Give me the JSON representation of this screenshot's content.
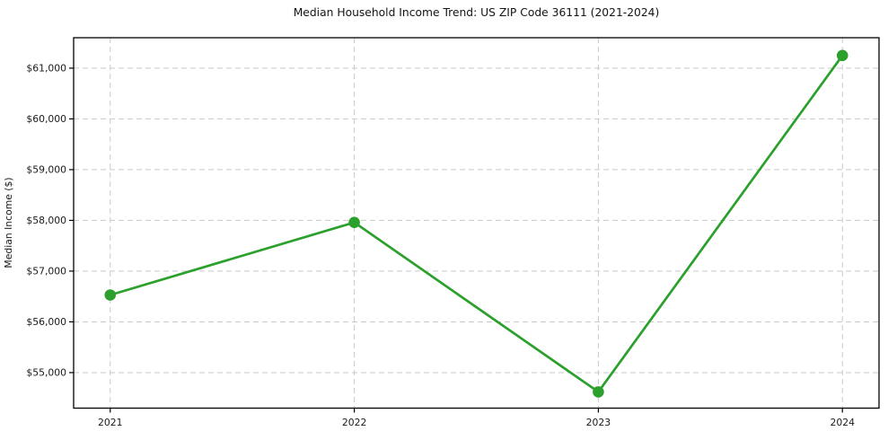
{
  "chart_data": {
    "type": "line",
    "title": "Median Household Income Trend: US ZIP Code 36111 (2021-2024)",
    "xlabel": "",
    "ylabel": "Median Income ($)",
    "x": [
      2021,
      2022,
      2023,
      2024
    ],
    "values": [
      56530,
      57960,
      54620,
      61250
    ],
    "xtick_labels": [
      "2021",
      "2022",
      "2023",
      "2024"
    ],
    "yticks": [
      55000,
      56000,
      57000,
      58000,
      59000,
      60000,
      61000
    ],
    "ytick_labels": [
      "$55,000",
      "$56,000",
      "$57,000",
      "$58,000",
      "$59,000",
      "$60,000",
      "$61,000"
    ],
    "xlim": [
      2020.85,
      2024.15
    ],
    "ylim": [
      54300,
      61600
    ],
    "grid": true,
    "grid_style": "dashed",
    "legend_position": "none",
    "line_color": "#2ca02c",
    "marker_color": "#2ca02c",
    "marker": "o"
  }
}
